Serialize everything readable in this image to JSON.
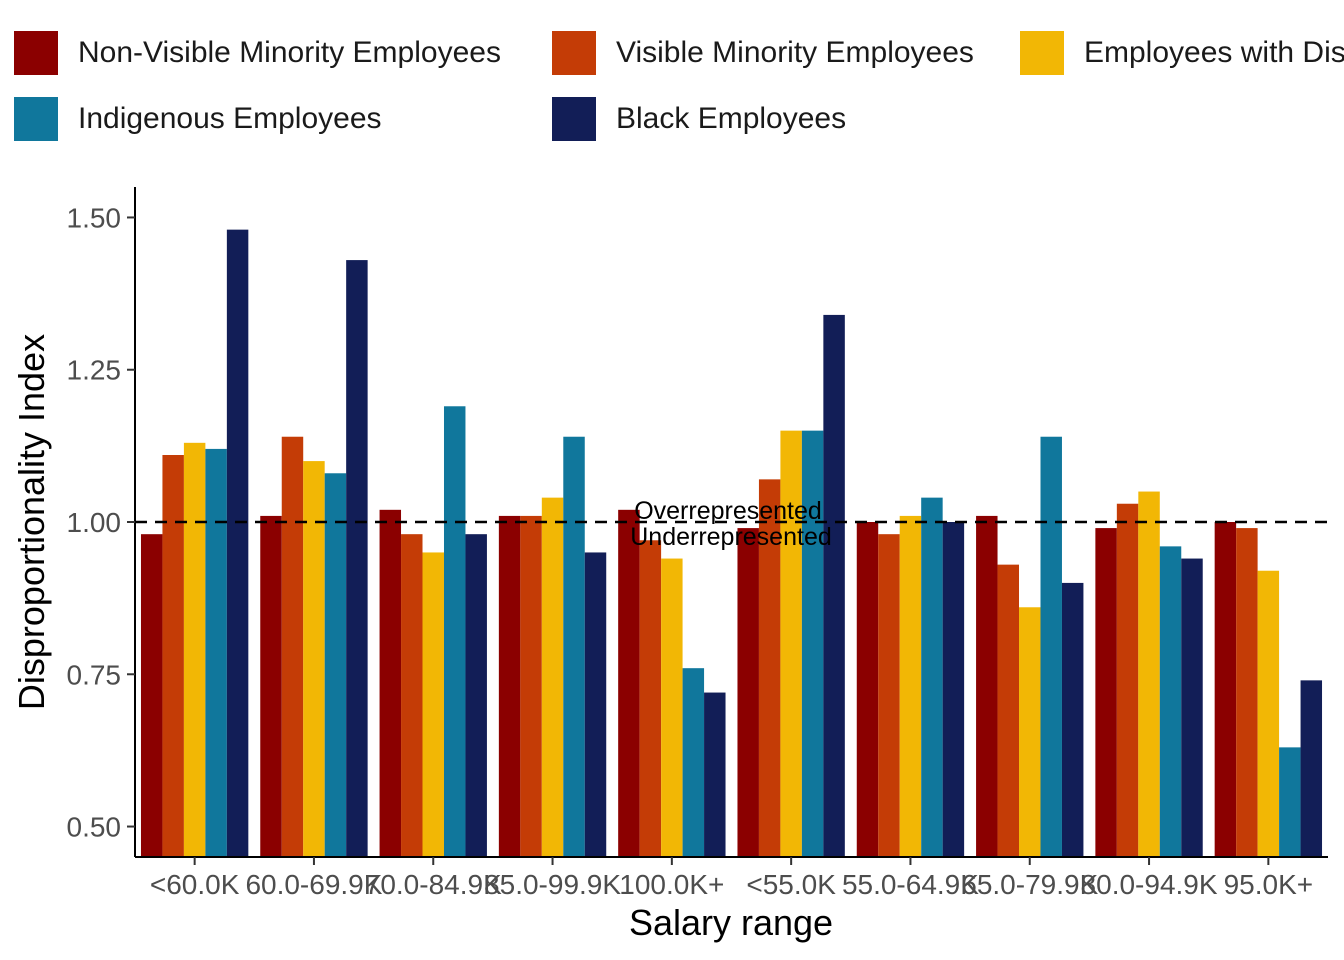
{
  "chart_data": {
    "type": "bar",
    "xlabel": "Salary range",
    "ylabel": "Disproportionality Index",
    "ylim": [
      0.45,
      1.55
    ],
    "yticks": [
      0.5,
      0.75,
      1.0,
      1.25,
      1.5
    ],
    "ytick_labels": [
      "0.50",
      "0.75",
      "1.00",
      "1.25",
      "1.50"
    ],
    "categories": [
      "<60.0K",
      "60.0-69.9K",
      "70.0-84.9K",
      "85.0-99.9K",
      "100.0K+",
      "<55.0K",
      "55.0-64.9K",
      "65.0-79.9K",
      "80.0-94.9K",
      "95.0K+"
    ],
    "reference_line": {
      "value": 1.0,
      "style": "dashed",
      "label_above": "Overrepresented",
      "label_below": "Underrepresented"
    },
    "legend_position": "top",
    "grid": false,
    "series": [
      {
        "name": "Non-Visible Minority Employees",
        "color": "#8B0000",
        "values": [
          0.98,
          1.01,
          1.02,
          1.01,
          1.02,
          0.99,
          1.0,
          1.01,
          0.99,
          1.0
        ]
      },
      {
        "name": "Visible Minority Employees",
        "color": "#C43C06",
        "values": [
          1.11,
          1.14,
          0.98,
          1.01,
          0.97,
          1.07,
          0.98,
          0.93,
          1.03,
          0.99
        ]
      },
      {
        "name": "Employees with Disabilities",
        "color": "#F2B705",
        "values": [
          1.13,
          1.1,
          0.95,
          1.04,
          0.94,
          1.15,
          1.01,
          0.86,
          1.05,
          0.92
        ]
      },
      {
        "name": "Indigenous Employees",
        "color": "#10779C",
        "values": [
          1.12,
          1.08,
          1.19,
          1.14,
          0.76,
          1.15,
          1.04,
          1.14,
          0.96,
          0.63
        ]
      },
      {
        "name": "Black Employees",
        "color": "#121E57",
        "values": [
          1.48,
          1.43,
          0.98,
          0.95,
          0.72,
          1.34,
          1.0,
          0.9,
          0.94,
          0.74
        ]
      }
    ]
  }
}
